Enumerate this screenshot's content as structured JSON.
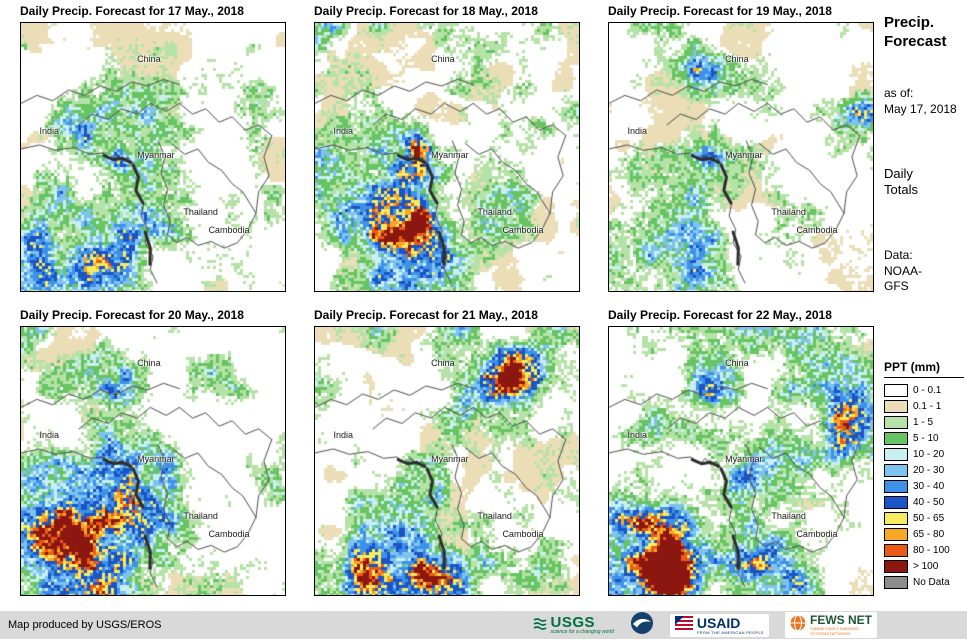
{
  "panels": [
    {
      "title": "Daily Precip. Forecast for 17 May., 2018"
    },
    {
      "title": "Daily Precip. Forecast for 18 May., 2018"
    },
    {
      "title": "Daily Precip. Forecast for 19 May., 2018"
    },
    {
      "title": "Daily Precip. Forecast for 20 May., 2018"
    },
    {
      "title": "Daily Precip. Forecast for 21 May., 2018"
    },
    {
      "title": "Daily Precip. Forecast for 22 May., 2018"
    }
  ],
  "map_labels": [
    "China",
    "India",
    "Myanmar",
    "Thailand",
    "Cambodia"
  ],
  "sidebar": {
    "title": "Precip. Forecast",
    "as_of_label": "as of:",
    "as_of_date": "May 17, 2018",
    "totals": "Daily Totals",
    "data_label": "Data:",
    "data_source": "NOAA-GFS"
  },
  "legend": {
    "title": "PPT (mm)",
    "entries": [
      {
        "label": "0 - 0.1",
        "color": "#FFFFFF"
      },
      {
        "label": "0.1 - 1",
        "color": "#EBDDB6"
      },
      {
        "label": "1 - 5",
        "color": "#B5E2A6"
      },
      {
        "label": "5 - 10",
        "color": "#67C463"
      },
      {
        "label": "10 - 20",
        "color": "#C9EFF2"
      },
      {
        "label": "20 - 30",
        "color": "#7EC3F0"
      },
      {
        "label": "30 - 40",
        "color": "#3D92E8"
      },
      {
        "label": "40 - 50",
        "color": "#1B54C4"
      },
      {
        "label": "50 - 65",
        "color": "#F7EB5F"
      },
      {
        "label": "65 - 80",
        "color": "#F7A925"
      },
      {
        "label": "80 - 100",
        "color": "#EB5B16"
      },
      {
        "label": "> 100",
        "color": "#8C1711"
      },
      {
        "label": "No Data",
        "color": "#8C8C8C"
      }
    ]
  },
  "footer": {
    "credit": "Map produced by USGS/EROS",
    "logos": {
      "usgs": {
        "text": "USGS",
        "tagline": "science for a changing world"
      },
      "noaa": {
        "text": ""
      },
      "usaid": {
        "text": "USAID",
        "tagline": "FROM THE AMERICAN PEOPLE"
      },
      "fewsnet": {
        "text": "FEWS NET",
        "tagline": "FAMINE EARLY WARNING SYSTEMS NETWORK"
      }
    }
  },
  "colors": {
    "border_line": "#4D4D4D",
    "thick_coast": "#2E2E2E",
    "footer_bg": "#D9D9D9"
  }
}
